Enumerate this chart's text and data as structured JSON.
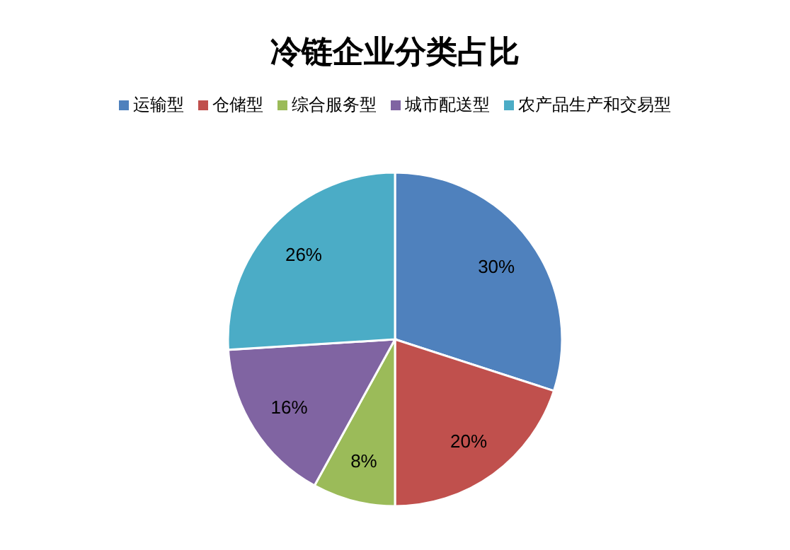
{
  "chart_data": {
    "type": "pie",
    "title": "冷链企业分类占比",
    "categories": [
      "运输型",
      "仓储型",
      "综合服务型",
      "城市配送型",
      "农产品生产和交易型"
    ],
    "values": [
      30,
      20,
      8,
      16,
      26
    ],
    "colors": [
      "#4f81bd",
      "#c0504d",
      "#9bbb59",
      "#8064a2",
      "#4bacc6"
    ],
    "value_labels": [
      "30%",
      "20%",
      "8%",
      "16%",
      "26%"
    ],
    "legend": "top"
  }
}
